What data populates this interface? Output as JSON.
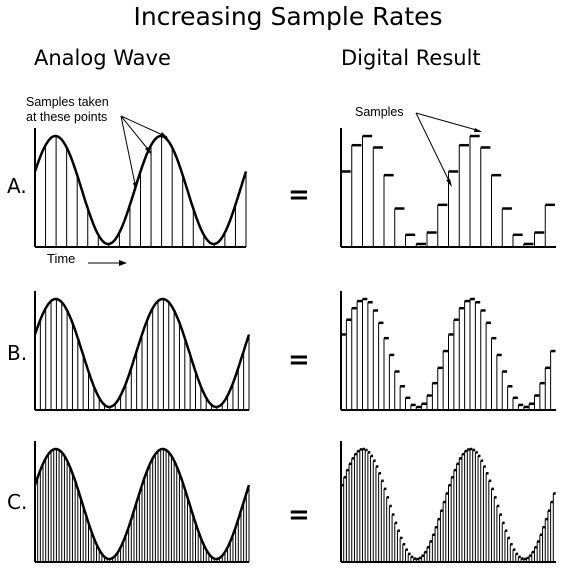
{
  "title": "Increasing Sample Rates",
  "column_headers": {
    "analog": "Analog Wave",
    "digital": "Digital Result"
  },
  "rows": [
    {
      "label": "A.",
      "samples_per_cycle": 10,
      "equals": "="
    },
    {
      "label": "B.",
      "samples_per_cycle": 20,
      "equals": "="
    },
    {
      "label": "C.",
      "samples_per_cycle": 40,
      "equals": "="
    }
  ],
  "annotations": {
    "analog_samples": "Samples taken\nat these points",
    "digital_samples": "Samples",
    "time_axis": "Time"
  },
  "colors": {
    "ink": "#000000",
    "background": "#ffffff"
  }
}
